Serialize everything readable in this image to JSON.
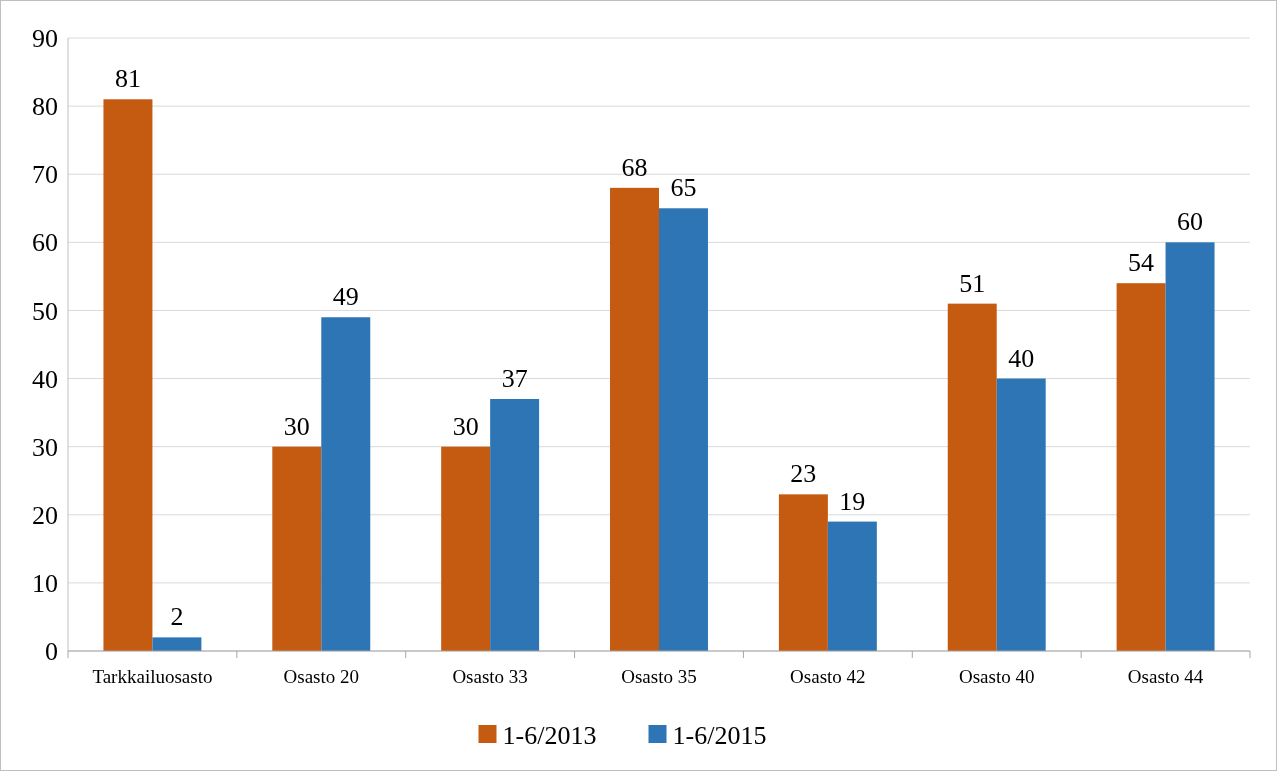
{
  "chart_data": {
    "type": "bar",
    "categories": [
      "Tarkkailuosasto",
      "Osasto 20",
      "Osasto 33",
      "Osasto 35",
      "Osasto 42",
      "Osasto 40",
      "Osasto 44"
    ],
    "series": [
      {
        "name": "1-6/2013",
        "color": "#c55a11",
        "values": [
          81,
          30,
          30,
          68,
          23,
          51,
          54
        ]
      },
      {
        "name": "1-6/2015",
        "color": "#2e75b6",
        "values": [
          2,
          49,
          37,
          65,
          19,
          40,
          60
        ]
      }
    ],
    "ylim": [
      0,
      90
    ],
    "yticks": [
      0,
      10,
      20,
      30,
      40,
      50,
      60,
      70,
      80,
      90
    ],
    "grid": "y",
    "legend": "bottom",
    "data_labels": true
  }
}
